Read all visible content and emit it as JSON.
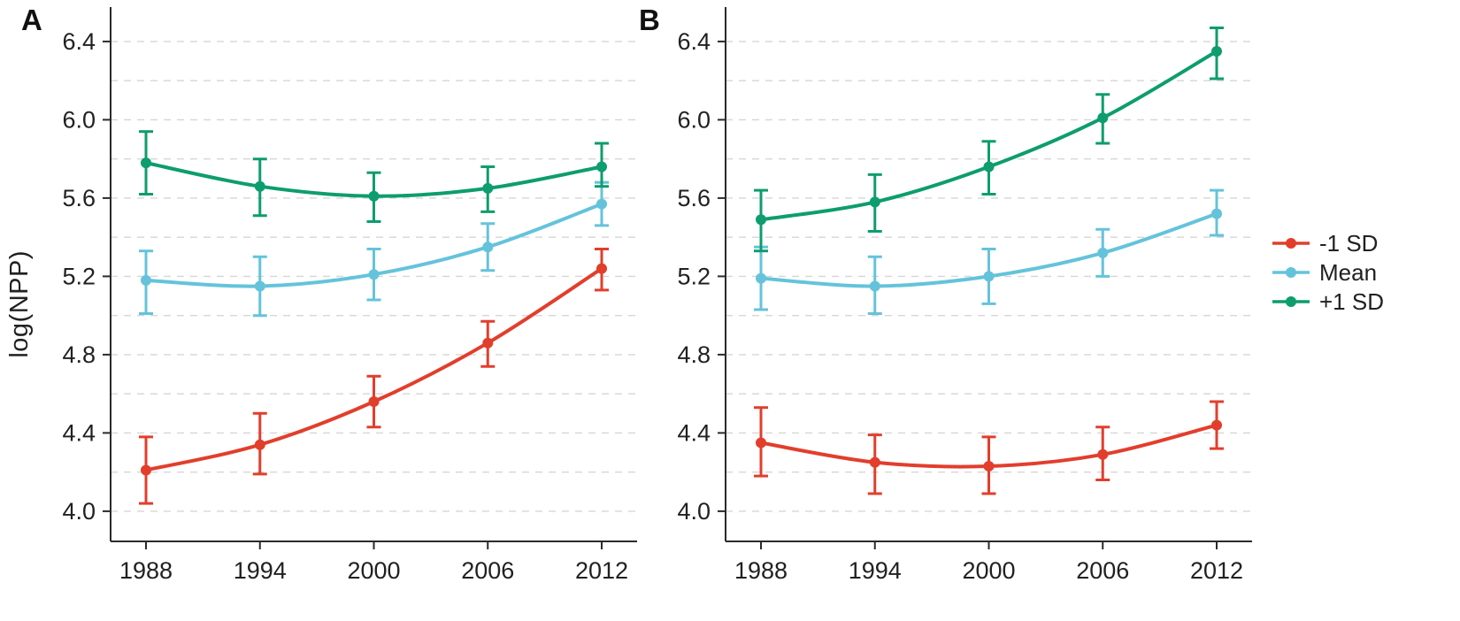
{
  "figure": {
    "ylabel": "log(NPP)",
    "x_tick_labels": [
      "1988",
      "1994",
      "2000",
      "2006",
      "2012"
    ],
    "y_tick_labels": [
      "4.0",
      "4.4",
      "4.8",
      "5.2",
      "5.6",
      "6.0",
      "6.4"
    ]
  },
  "legend": {
    "position": "right",
    "items": [
      {
        "label": "-1 SD",
        "color": "#e23e2c"
      },
      {
        "label": "Mean",
        "color": "#64c3db"
      },
      {
        "label": "+1 SD",
        "color": "#0d9d6e"
      }
    ]
  },
  "chart_data": [
    {
      "type": "line",
      "panel_label": "A",
      "x": [
        1988,
        1994,
        2000,
        2006,
        2012
      ],
      "xlabel": "",
      "ylabel": "log(NPP)",
      "ylim": [
        3.85,
        6.58
      ],
      "yticks": [
        4.0,
        4.4,
        4.8,
        5.2,
        5.6,
        6.0,
        6.4
      ],
      "grid": "dashed horizontal every 0.2",
      "error_bars": true,
      "series": [
        {
          "name": "-1 SD",
          "color": "#e23e2c",
          "values": [
            4.21,
            4.34,
            4.56,
            4.86,
            5.24
          ],
          "err_low": [
            4.04,
            4.19,
            4.43,
            4.74,
            5.13
          ],
          "err_high": [
            4.38,
            4.5,
            4.69,
            4.97,
            5.34
          ]
        },
        {
          "name": "Mean",
          "color": "#64c3db",
          "values": [
            5.18,
            5.15,
            5.21,
            5.35,
            5.57
          ],
          "err_low": [
            5.01,
            5.0,
            5.08,
            5.23,
            5.46
          ],
          "err_high": [
            5.33,
            5.3,
            5.34,
            5.47,
            5.68
          ]
        },
        {
          "name": "+1 SD",
          "color": "#0d9d6e",
          "values": [
            5.78,
            5.66,
            5.61,
            5.65,
            5.76
          ],
          "err_low": [
            5.62,
            5.51,
            5.48,
            5.53,
            5.66
          ],
          "err_high": [
            5.94,
            5.8,
            5.73,
            5.76,
            5.88
          ]
        }
      ]
    },
    {
      "type": "line",
      "panel_label": "B",
      "x": [
        1988,
        1994,
        2000,
        2006,
        2012
      ],
      "xlabel": "",
      "ylabel": "",
      "ylim": [
        3.85,
        6.58
      ],
      "yticks": [
        4.0,
        4.4,
        4.8,
        5.2,
        5.6,
        6.0,
        6.4
      ],
      "grid": "dashed horizontal every 0.2",
      "error_bars": true,
      "series": [
        {
          "name": "-1 SD",
          "color": "#e23e2c",
          "values": [
            4.35,
            4.25,
            4.23,
            4.29,
            4.44
          ],
          "err_low": [
            4.18,
            4.09,
            4.09,
            4.16,
            4.32
          ],
          "err_high": [
            4.53,
            4.39,
            4.38,
            4.43,
            4.56
          ]
        },
        {
          "name": "Mean",
          "color": "#64c3db",
          "values": [
            5.19,
            5.15,
            5.2,
            5.32,
            5.52
          ],
          "err_low": [
            5.03,
            5.01,
            5.06,
            5.2,
            5.41
          ],
          "err_high": [
            5.35,
            5.3,
            5.34,
            5.44,
            5.64
          ]
        },
        {
          "name": "+1 SD",
          "color": "#0d9d6e",
          "values": [
            5.49,
            5.58,
            5.76,
            6.01,
            6.35
          ],
          "err_low": [
            5.33,
            5.43,
            5.62,
            5.88,
            6.21
          ],
          "err_high": [
            5.64,
            5.72,
            5.89,
            6.13,
            6.47
          ]
        }
      ]
    }
  ]
}
